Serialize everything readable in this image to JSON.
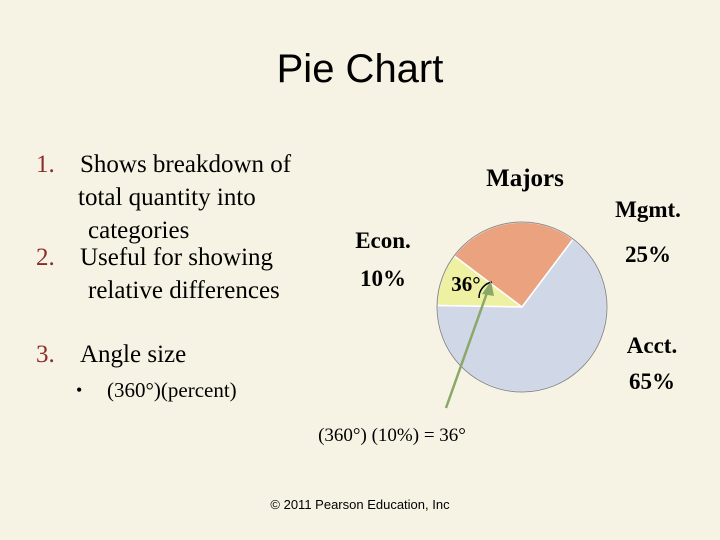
{
  "title": "Pie Chart",
  "list": [
    {
      "number": "1.",
      "lines": [
        "Shows breakdown of",
        "total quantity into",
        "categories"
      ]
    },
    {
      "number": "2.",
      "lines": [
        "Useful for showing",
        "relative differences"
      ]
    },
    {
      "number": "3.",
      "lines": [
        "Angle size"
      ]
    }
  ],
  "sub_bullet": {
    "marker": "•",
    "text": "(360°)(percent)"
  },
  "chart_data": {
    "type": "pie",
    "title": "Majors",
    "categories": [
      "Econ.",
      "Mgmt.",
      "Acct."
    ],
    "values": [
      10,
      25,
      65
    ],
    "value_labels": [
      "10%",
      "25%",
      "65%"
    ],
    "colors": [
      "#eef0a2",
      "#eba27f",
      "#d0d7e6"
    ],
    "annotations": [
      "36°",
      "(360°) (10%) = 36°"
    ]
  },
  "footer": "© 2011 Pearson Education, Inc"
}
